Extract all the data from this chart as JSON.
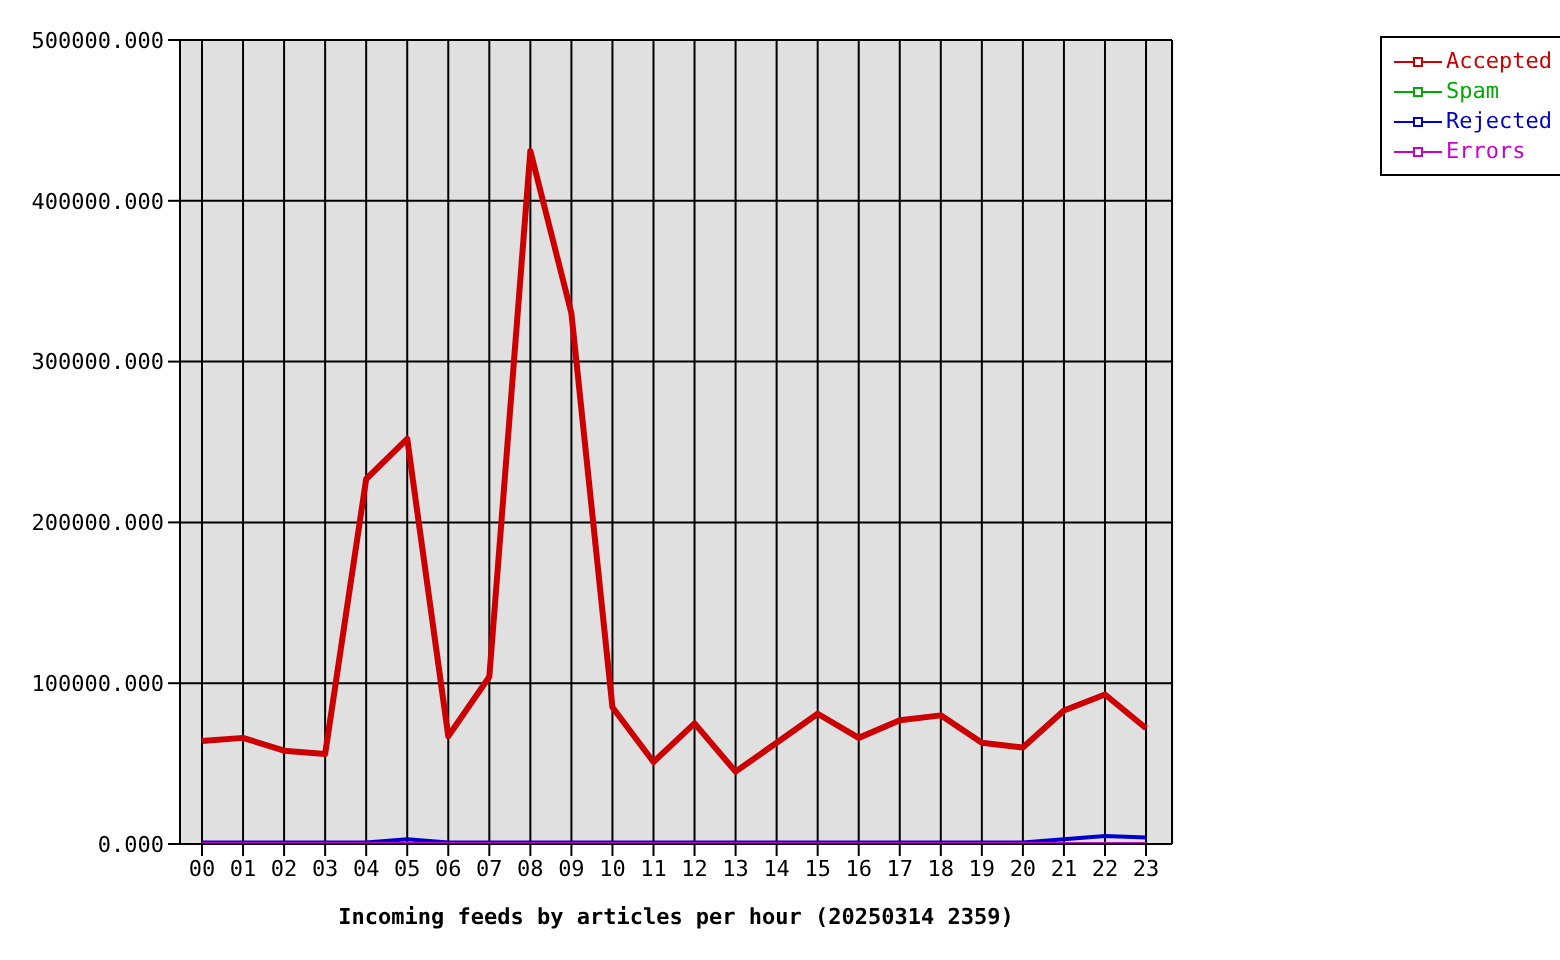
{
  "chart_data": {
    "type": "line",
    "title": "Incoming feeds by articles per hour (20250314 2359)",
    "categories": [
      "00",
      "01",
      "02",
      "03",
      "04",
      "05",
      "06",
      "07",
      "08",
      "09",
      "10",
      "11",
      "12",
      "13",
      "14",
      "15",
      "16",
      "17",
      "18",
      "19",
      "20",
      "21",
      "22",
      "23"
    ],
    "series": [
      {
        "name": "Accepted",
        "color": "#cc0000",
        "values": [
          64000,
          66000,
          58000,
          56000,
          227000,
          252000,
          67000,
          104000,
          431000,
          330000,
          85000,
          51000,
          75000,
          45000,
          63000,
          81000,
          66000,
          77000,
          80000,
          63000,
          60000,
          83000,
          93000,
          72000
        ]
      },
      {
        "name": "Spam",
        "color": "#00aa00",
        "values": [
          null,
          null,
          null,
          null,
          null,
          null,
          null,
          null,
          null,
          null,
          null,
          null,
          null,
          null,
          null,
          null,
          null,
          null,
          null,
          null,
          null,
          null,
          null,
          null
        ]
      },
      {
        "name": "Rejected",
        "color": "#0000cc",
        "values": [
          1000,
          1000,
          1000,
          1000,
          1000,
          3000,
          1000,
          1000,
          1000,
          1000,
          1000,
          1000,
          1000,
          1000,
          1000,
          1000,
          1000,
          1000,
          1000,
          1000,
          1000,
          3000,
          5000,
          4000
        ]
      },
      {
        "name": "Errors",
        "color": "#cc00cc",
        "values": [
          0,
          0,
          0,
          0,
          0,
          0,
          0,
          0,
          0,
          0,
          0,
          0,
          0,
          0,
          0,
          0,
          0,
          0,
          0,
          0,
          0,
          0,
          0,
          0
        ]
      }
    ],
    "ylim": [
      0,
      500000
    ],
    "yticks": [
      {
        "value": 0,
        "label": "0.000"
      },
      {
        "value": 100000,
        "label": "100000.000"
      },
      {
        "value": 200000,
        "label": "200000.000"
      },
      {
        "value": 300000,
        "label": "300000.000"
      },
      {
        "value": 400000,
        "label": "400000.000"
      },
      {
        "value": 500000,
        "label": "500000.000"
      }
    ],
    "grid": true,
    "legend": "top right"
  }
}
